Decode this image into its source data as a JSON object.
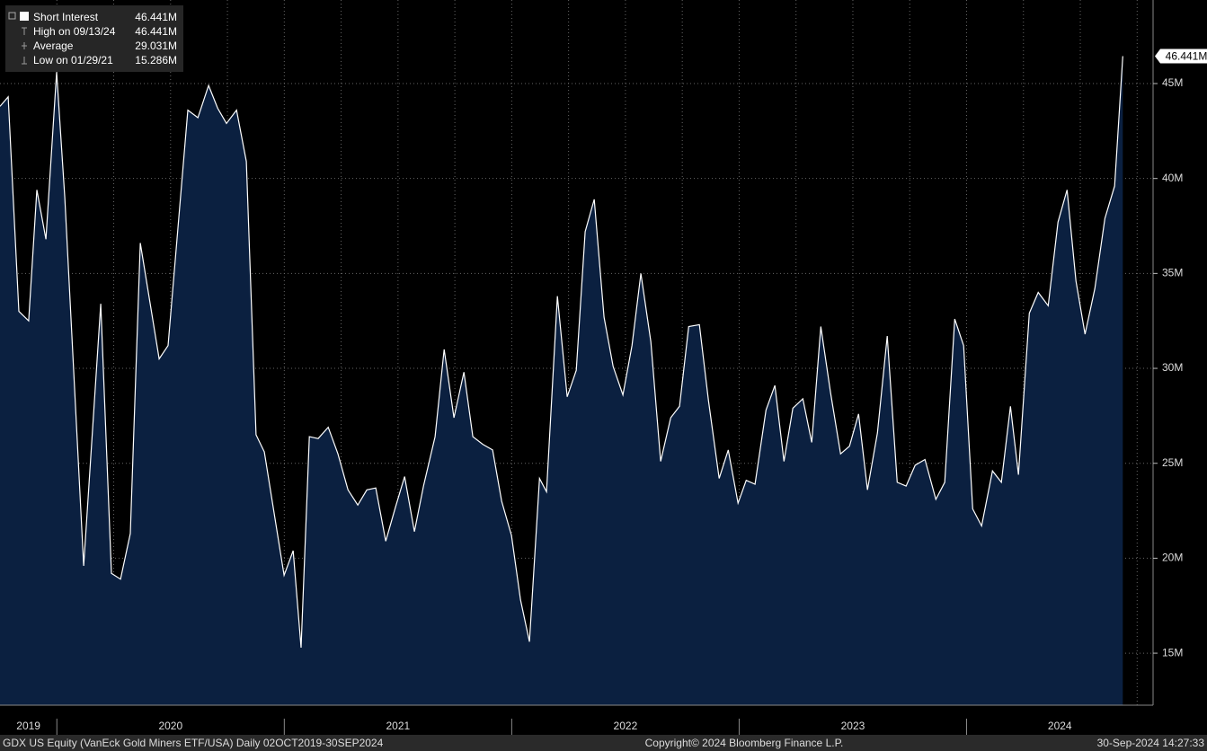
{
  "chart_data": {
    "type": "area",
    "x": [
      2019.75,
      2019.786,
      2019.833,
      2019.876,
      2019.912,
      2019.952,
      2019.999,
      2020.035,
      2020.118,
      2020.193,
      2020.24,
      2020.28,
      2020.323,
      2020.367,
      2020.45,
      2020.489,
      2020.576,
      2020.62,
      2020.667,
      2020.707,
      2020.746,
      2020.79,
      2020.833,
      2020.876,
      2020.912,
      2020.999,
      2021.039,
      2021.074,
      2021.11,
      2021.149,
      2021.193,
      2021.236,
      2021.28,
      2021.323,
      2021.363,
      2021.402,
      2021.446,
      2021.489,
      2021.529,
      2021.572,
      2021.612,
      2021.663,
      2021.703,
      2021.746,
      2021.79,
      2021.829,
      2021.873,
      2021.916,
      2021.956,
      2021.999,
      2022.039,
      2022.078,
      2022.122,
      2022.153,
      2022.201,
      2022.244,
      2022.284,
      2022.323,
      2022.363,
      2022.406,
      2022.446,
      2022.489,
      2022.529,
      2022.568,
      2022.612,
      2022.655,
      2022.699,
      2022.738,
      2022.778,
      2022.825,
      2022.865,
      2022.912,
      2022.952,
      2022.995,
      2023.031,
      2023.07,
      2023.118,
      2023.157,
      2023.197,
      2023.236,
      2023.28,
      2023.319,
      2023.359,
      2023.402,
      2023.446,
      2023.485,
      2023.525,
      2023.564,
      2023.608,
      2023.651,
      2023.695,
      2023.734,
      2023.774,
      2023.817,
      2023.865,
      2023.904,
      2023.948,
      2023.987,
      2024.027,
      2024.066,
      2024.114,
      2024.153,
      2024.193,
      2024.228,
      2024.276,
      2024.315,
      2024.359,
      2024.402,
      2024.442,
      2024.481,
      2024.521,
      2024.564,
      2024.608,
      2024.651,
      2024.687
    ],
    "series": [
      {
        "name": "Short Interest",
        "color": "#ffffff",
        "fill": "#0b2040",
        "values": [
          43.8,
          44.3,
          33.0,
          32.5,
          39.4,
          36.8,
          45.6,
          39.0,
          19.6,
          33.4,
          19.2,
          18.9,
          21.3,
          36.6,
          30.5,
          31.2,
          43.6,
          43.2,
          44.9,
          43.7,
          42.9,
          43.6,
          40.9,
          26.5,
          25.6,
          19.1,
          20.4,
          15.286,
          26.4,
          26.3,
          26.9,
          25.5,
          23.6,
          22.8,
          23.6,
          23.7,
          20.9,
          22.7,
          24.3,
          21.4,
          23.8,
          26.4,
          31.0,
          27.4,
          29.8,
          26.4,
          26.0,
          25.7,
          23.0,
          21.2,
          17.8,
          15.6,
          24.2,
          23.5,
          33.8,
          28.5,
          29.9,
          37.2,
          38.9,
          32.7,
          30.1,
          28.6,
          31.2,
          35.0,
          31.4,
          25.1,
          27.4,
          28.0,
          32.2,
          32.3,
          28.3,
          24.2,
          25.7,
          22.9,
          24.1,
          23.9,
          27.8,
          29.1,
          25.1,
          27.9,
          28.4,
          26.1,
          32.2,
          28.7,
          25.5,
          25.9,
          27.6,
          23.6,
          26.6,
          31.7,
          24.0,
          23.8,
          24.9,
          25.2,
          23.1,
          24.0,
          32.6,
          31.2,
          22.6,
          21.7,
          24.6,
          24.0,
          28.0,
          24.4,
          32.9,
          34.0,
          33.3,
          37.7,
          39.4,
          34.6,
          31.8,
          34.2,
          37.9,
          39.6,
          46.441
        ]
      }
    ],
    "last_label": "46.441M",
    "xlim": [
      2019.75,
      2024.82
    ],
    "ylim": [
      12.26,
      49.4
    ],
    "yticks": [
      {
        "value": 15,
        "label": "15M"
      },
      {
        "value": 20,
        "label": "20M"
      },
      {
        "value": 25,
        "label": "25M"
      },
      {
        "value": 30,
        "label": "30M"
      },
      {
        "value": 35,
        "label": "35M"
      },
      {
        "value": 40,
        "label": "40M"
      },
      {
        "value": 45,
        "label": "45M"
      }
    ],
    "xticks": [
      2020,
      2021,
      2022,
      2023,
      2024
    ],
    "xgrid": [
      2020,
      2020.25,
      2020.5,
      2020.75,
      2021,
      2021.25,
      2021.5,
      2021.75,
      2022,
      2022.25,
      2022.5,
      2022.75,
      2023,
      2023.25,
      2023.5,
      2023.75,
      2024,
      2024.25,
      2024.5,
      2024.75
    ],
    "xlabels": [
      {
        "value": 2019.875,
        "label": "2019"
      },
      {
        "value": 2020.5,
        "label": "2020"
      },
      {
        "value": 2021.5,
        "label": "2021"
      },
      {
        "value": 2022.5,
        "label": "2022"
      },
      {
        "value": 2023.5,
        "label": "2023"
      },
      {
        "value": 2024.41,
        "label": "2024"
      }
    ],
    "grid": true,
    "legend": [
      {
        "label": "High on 09/13/24",
        "value": "46.441M"
      },
      {
        "label": "Average",
        "value": "29.031M"
      },
      {
        "label": "Low on 01/29/21",
        "value": "15.286M"
      }
    ],
    "legend_value": "46.441M",
    "footer": {
      "left": "GDX US Equity (VanEck Gold Miners ETF/USA)  Daily 02OCT2019-30SEP2024",
      "center": "Copyright© 2024 Bloomberg Finance L.P.",
      "right": "30-Sep-2024 14:27:33"
    }
  }
}
